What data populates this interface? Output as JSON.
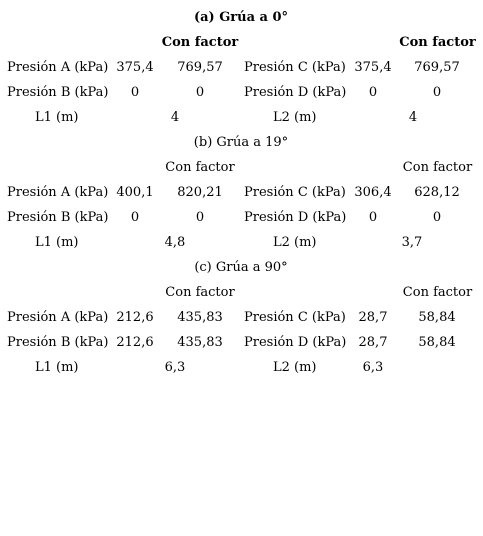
{
  "sections": [
    {
      "title": "(a) Grúa a 0°",
      "factor_label_left": "Con factor",
      "factor_label_right": "Con factor",
      "left": {
        "row1": {
          "label": "Presión A (kPa)",
          "value": "375,4",
          "factor": "769,57"
        },
        "row2": {
          "label": "Presión B (kPa)",
          "value": "0",
          "factor": "0"
        },
        "length": {
          "label": "L1 (m)",
          "value": "4"
        }
      },
      "right": {
        "row1": {
          "label": "Presión C (kPa)",
          "value": "375,4",
          "factor": "769,57"
        },
        "row2": {
          "label": "Presión D (kPa)",
          "value": "0",
          "factor": "0"
        },
        "length": {
          "label": "L2 (m)",
          "value": "4"
        }
      }
    },
    {
      "title": "(b) Grúa a 19°",
      "factor_label_left": "Con factor",
      "factor_label_right": "Con factor",
      "left": {
        "row1": {
          "label": "Presión A (kPa)",
          "value": "400,1",
          "factor": "820,21"
        },
        "row2": {
          "label": "Presión B (kPa)",
          "value": "0",
          "factor": "0"
        },
        "length": {
          "label": "L1 (m)",
          "value": "4,8"
        }
      },
      "right": {
        "row1": {
          "label": "Presión C (kPa)",
          "value": "306,4",
          "factor": "628,12"
        },
        "row2": {
          "label": "Presión D (kPa)",
          "value": "0",
          "factor": "0"
        },
        "length": {
          "label": "L2 (m)",
          "value": "3,7"
        }
      }
    },
    {
      "title": "(c) Grúa a 90°",
      "factor_label_left": "Con factor",
      "factor_label_right": "Con factor",
      "left": {
        "row1": {
          "label": "Presión A (kPa)",
          "value": "212,6",
          "factor": "435,83"
        },
        "row2": {
          "label": "Presión B (kPa)",
          "value": "212,6",
          "factor": "435,83"
        },
        "length": {
          "label": "L1 (m)",
          "value": "6,3"
        }
      },
      "right": {
        "row1": {
          "label": "Presión C (kPa)",
          "value": "28,7",
          "factor": "58,84"
        },
        "row2": {
          "label": "Presión D (kPa)",
          "value": "28,7",
          "factor": "58,84"
        },
        "length": {
          "label": "L2 (m)",
          "value": "6,3"
        }
      }
    }
  ]
}
